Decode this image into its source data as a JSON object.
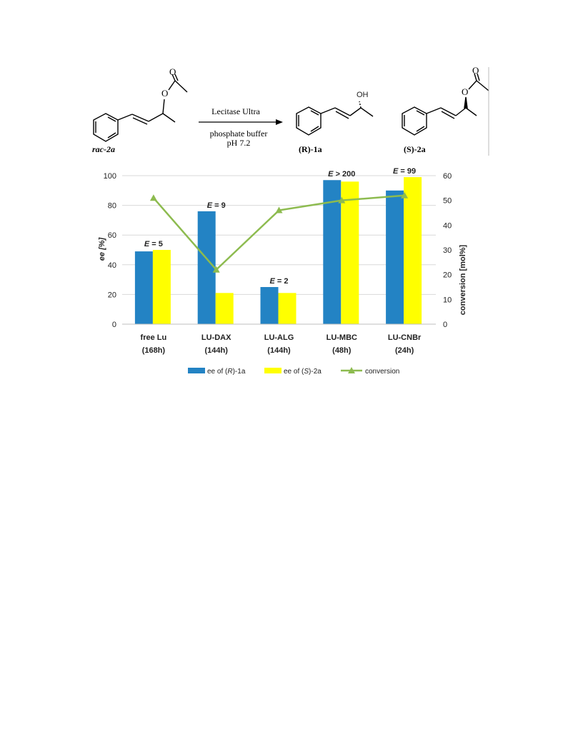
{
  "scheme": {
    "reactant": "rac-2a",
    "reagent_top": "Lecitase Ultra",
    "reagent_bottom_1": "phosphate buffer",
    "reagent_bottom_2": "pH 7.2",
    "product_1": "(R)-1a",
    "product_2": "(S)-2a",
    "atom_o": "O",
    "atom_oh": "OH"
  },
  "colors": {
    "ee_R": "#2383c4",
    "ee_S": "#ffff00",
    "conversion": "#8dbb4f",
    "grid": "#d9d9d9"
  },
  "chart_data": {
    "type": "bar",
    "categories": [
      [
        "free Lu",
        "(168h)"
      ],
      [
        "LU-DAX",
        "(144h)"
      ],
      [
        "LU-ALG",
        "(144h)"
      ],
      [
        "LU-MBC",
        "(48h)"
      ],
      [
        "LU-CNBr",
        "(24h)"
      ]
    ],
    "series": [
      {
        "name": "ee of (R)-1a",
        "axis": "left",
        "kind": "bar",
        "values": [
          49,
          76,
          25,
          97,
          90
        ]
      },
      {
        "name": "ee of (S)-2a",
        "axis": "left",
        "kind": "bar",
        "values": [
          50,
          21,
          21,
          96,
          99
        ]
      },
      {
        "name": "conversion",
        "axis": "right",
        "kind": "line",
        "marker": "triangle",
        "values": [
          51,
          22,
          46,
          50,
          52
        ]
      }
    ],
    "annotations": [
      "E = 5",
      "E = 9",
      "E = 2",
      "E > 200",
      "E = 99"
    ],
    "ylabel_left": "ee [%]",
    "ylabel_right": "conversion [mol%]",
    "ylim_left": [
      0,
      100
    ],
    "yticks_left": [
      0,
      20,
      40,
      60,
      80,
      100
    ],
    "ylim_right": [
      0,
      60
    ],
    "yticks_right": [
      0,
      10,
      20,
      30,
      40,
      50,
      60
    ],
    "grid": true,
    "legend_position": "bottom"
  }
}
